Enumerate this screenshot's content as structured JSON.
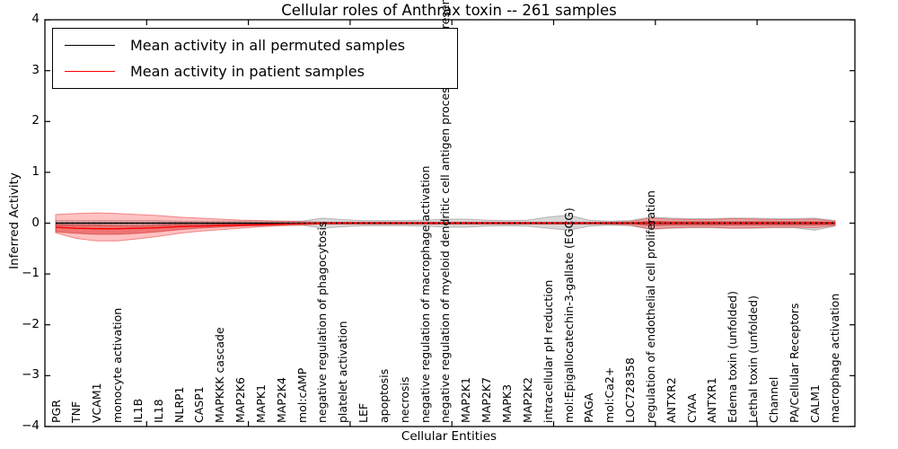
{
  "figure": {
    "background": "#ffffff",
    "accent_red": "#ff0000",
    "band_gray": "rgba(140,140,140,0.35)",
    "band_red_outer": "rgba(255,70,70,0.33)",
    "band_red_inner": "rgba(222,40,40,0.50)"
  },
  "legend": {
    "entries": [
      {
        "label": "Mean activity in all permuted samples",
        "color": "#000000"
      },
      {
        "label": "Mean activity in patient samples",
        "color": "#ff0000"
      }
    ]
  },
  "chart_data": {
    "type": "area",
    "title": "Cellular roles of Anthrax toxin -- 261 samples",
    "xlabel": "Cellular Entities",
    "ylabel": "Inferred Activity",
    "ylim": [
      -4,
      4
    ],
    "ytick_labels": [
      "4",
      "3",
      "2",
      "1",
      "0",
      "−1",
      "−2",
      "−3",
      "−4"
    ],
    "grid": false,
    "legend_position": "upper left",
    "categories": [
      "PGR",
      "TNF",
      "VCAM1",
      "monocyte activation",
      "IL1B",
      "IL18",
      "NLRP1",
      "CASP1",
      "MAPKKK cascade",
      "MAP2K6",
      "MAPK1",
      "MAP2K4",
      "mol:cAMP",
      "negative regulation of phagocytosis",
      "platelet activation",
      "LEF",
      "apoptosis",
      "necrosis",
      "negative regulation of macrophage activation",
      "negative regulation of myeloid dendritic cell antigen processing and presentation",
      "MAP2K1",
      "MAP2K7",
      "MAPK3",
      "MAP2K2",
      "intracellular pH reduction",
      "mol:Epigallocatechin-3-gallate (EGCG)",
      "PAGA",
      "mol:Ca2+",
      "LOC728358",
      "regulation of endothelial cell proliferation",
      "ANTXR2",
      "CYAA",
      "ANTXR1",
      "Edema toxin (unfolded)",
      "Lethal toxin (unfolded)",
      "Channel",
      "PA/Cellular Receptors",
      "CALM1",
      "macrophage activation"
    ],
    "series": [
      {
        "name": "Permuted samples activity band",
        "type": "band",
        "color": "rgba(140,140,140,0.35)",
        "edge": "rgba(120,120,120,0.45)",
        "upper": [
          0.05,
          0.05,
          0.05,
          0.05,
          0.05,
          0.05,
          0.04,
          0.04,
          0.04,
          0.04,
          0.04,
          0.04,
          0.04,
          0.1,
          0.07,
          0.05,
          0.05,
          0.05,
          0.06,
          0.08,
          0.08,
          0.06,
          0.05,
          0.06,
          0.12,
          0.16,
          0.06,
          0.04,
          0.05,
          0.12,
          0.1,
          0.09,
          0.09,
          0.1,
          0.1,
          0.09,
          0.09,
          0.1,
          0.05
        ],
        "lower": [
          -0.05,
          -0.05,
          -0.05,
          -0.05,
          -0.05,
          -0.05,
          -0.04,
          -0.04,
          -0.04,
          -0.04,
          -0.04,
          -0.04,
          -0.04,
          -0.1,
          -0.07,
          -0.05,
          -0.05,
          -0.05,
          -0.06,
          -0.08,
          -0.08,
          -0.06,
          -0.05,
          -0.06,
          -0.1,
          -0.14,
          -0.06,
          -0.04,
          -0.05,
          -0.12,
          -0.1,
          -0.09,
          -0.09,
          -0.1,
          -0.1,
          -0.09,
          -0.09,
          -0.14,
          -0.06
        ]
      },
      {
        "name": "Patient samples activity band (outer)",
        "type": "band",
        "color": "rgba(255,70,70,0.33)",
        "edge": "rgba(229,60,60,0.55)",
        "upper": [
          0.17,
          0.19,
          0.2,
          0.19,
          0.17,
          0.15,
          0.12,
          0.1,
          0.08,
          0.06,
          0.05,
          0.04,
          0.03,
          0.02,
          0.02,
          0.02,
          0.02,
          0.02,
          0.02,
          0.02,
          0.02,
          0.02,
          0.02,
          0.02,
          0.02,
          0.02,
          0.02,
          0.02,
          0.03,
          0.1,
          0.08,
          0.07,
          0.07,
          0.09,
          0.08,
          0.07,
          0.07,
          0.08,
          0.04
        ],
        "lower": [
          -0.19,
          -0.3,
          -0.35,
          -0.35,
          -0.31,
          -0.26,
          -0.2,
          -0.16,
          -0.13,
          -0.1,
          -0.07,
          -0.05,
          -0.04,
          -0.02,
          -0.02,
          -0.02,
          -0.02,
          -0.02,
          -0.02,
          -0.02,
          -0.02,
          -0.02,
          -0.02,
          -0.02,
          -0.02,
          -0.02,
          -0.02,
          -0.02,
          -0.03,
          -0.12,
          -0.09,
          -0.08,
          -0.08,
          -0.1,
          -0.09,
          -0.08,
          -0.08,
          -0.09,
          -0.05
        ]
      },
      {
        "name": "Patient samples activity band (inner)",
        "type": "band",
        "color": "rgba(222,40,40,0.50)",
        "edge": "rgba(200,30,30,0.45)",
        "upper": [
          -0.03,
          -0.04,
          -0.04,
          -0.05,
          -0.05,
          -0.04,
          -0.03,
          -0.03,
          -0.02,
          -0.02,
          -0.01,
          -0.01,
          -0.01,
          0.01,
          0.01,
          0.01,
          0.01,
          0.01,
          0.01,
          0.01,
          0.01,
          0.01,
          0.01,
          0.01,
          0.01,
          0.01,
          0.01,
          0.01,
          0.01,
          0.04,
          0.03,
          0.03,
          0.03,
          0.03,
          0.03,
          0.03,
          0.03,
          0.03,
          0.02
        ],
        "lower": [
          -0.17,
          -0.2,
          -0.22,
          -0.22,
          -0.2,
          -0.17,
          -0.13,
          -0.1,
          -0.08,
          -0.06,
          -0.05,
          -0.03,
          -0.02,
          -0.01,
          -0.01,
          -0.01,
          -0.01,
          -0.01,
          -0.01,
          -0.01,
          -0.01,
          -0.01,
          -0.01,
          -0.01,
          -0.01,
          -0.01,
          -0.01,
          -0.01,
          -0.01,
          -0.05,
          -0.04,
          -0.04,
          -0.04,
          -0.04,
          -0.04,
          -0.04,
          -0.04,
          -0.04,
          -0.03
        ]
      },
      {
        "name": "Mean activity in all permuted samples",
        "type": "line",
        "color": "#000000",
        "values": [
          0,
          0,
          0,
          0,
          0,
          0,
          0,
          0,
          0,
          0,
          0,
          0,
          0,
          0,
          0,
          0,
          0,
          0,
          0,
          0,
          0,
          0,
          0,
          0,
          0,
          0,
          0,
          0,
          0,
          0,
          0,
          0,
          0,
          0,
          0,
          0,
          0,
          0,
          0
        ]
      },
      {
        "name": "Mean activity in patient samples",
        "type": "line",
        "color": "#ff0000",
        "values": [
          -0.08,
          -0.1,
          -0.11,
          -0.11,
          -0.1,
          -0.09,
          -0.07,
          -0.06,
          -0.05,
          -0.04,
          -0.03,
          -0.02,
          -0.01,
          0,
          0,
          0,
          0,
          0,
          0,
          0,
          0,
          0,
          0,
          0,
          0,
          0,
          0,
          0,
          0,
          0,
          0,
          0,
          0,
          0,
          0,
          0,
          0,
          0,
          0
        ]
      },
      {
        "name": "Zero reference (dotted)",
        "type": "dotted-line",
        "color": "#000000",
        "values": [
          0,
          0,
          0,
          0,
          0,
          0,
          0,
          0,
          0,
          0,
          0,
          0,
          0,
          0,
          0,
          0,
          0,
          0,
          0,
          0,
          0,
          0,
          0,
          0,
          0,
          0,
          0,
          0,
          0,
          0,
          0,
          0,
          0,
          0,
          0,
          0,
          0,
          0,
          0
        ]
      }
    ]
  }
}
